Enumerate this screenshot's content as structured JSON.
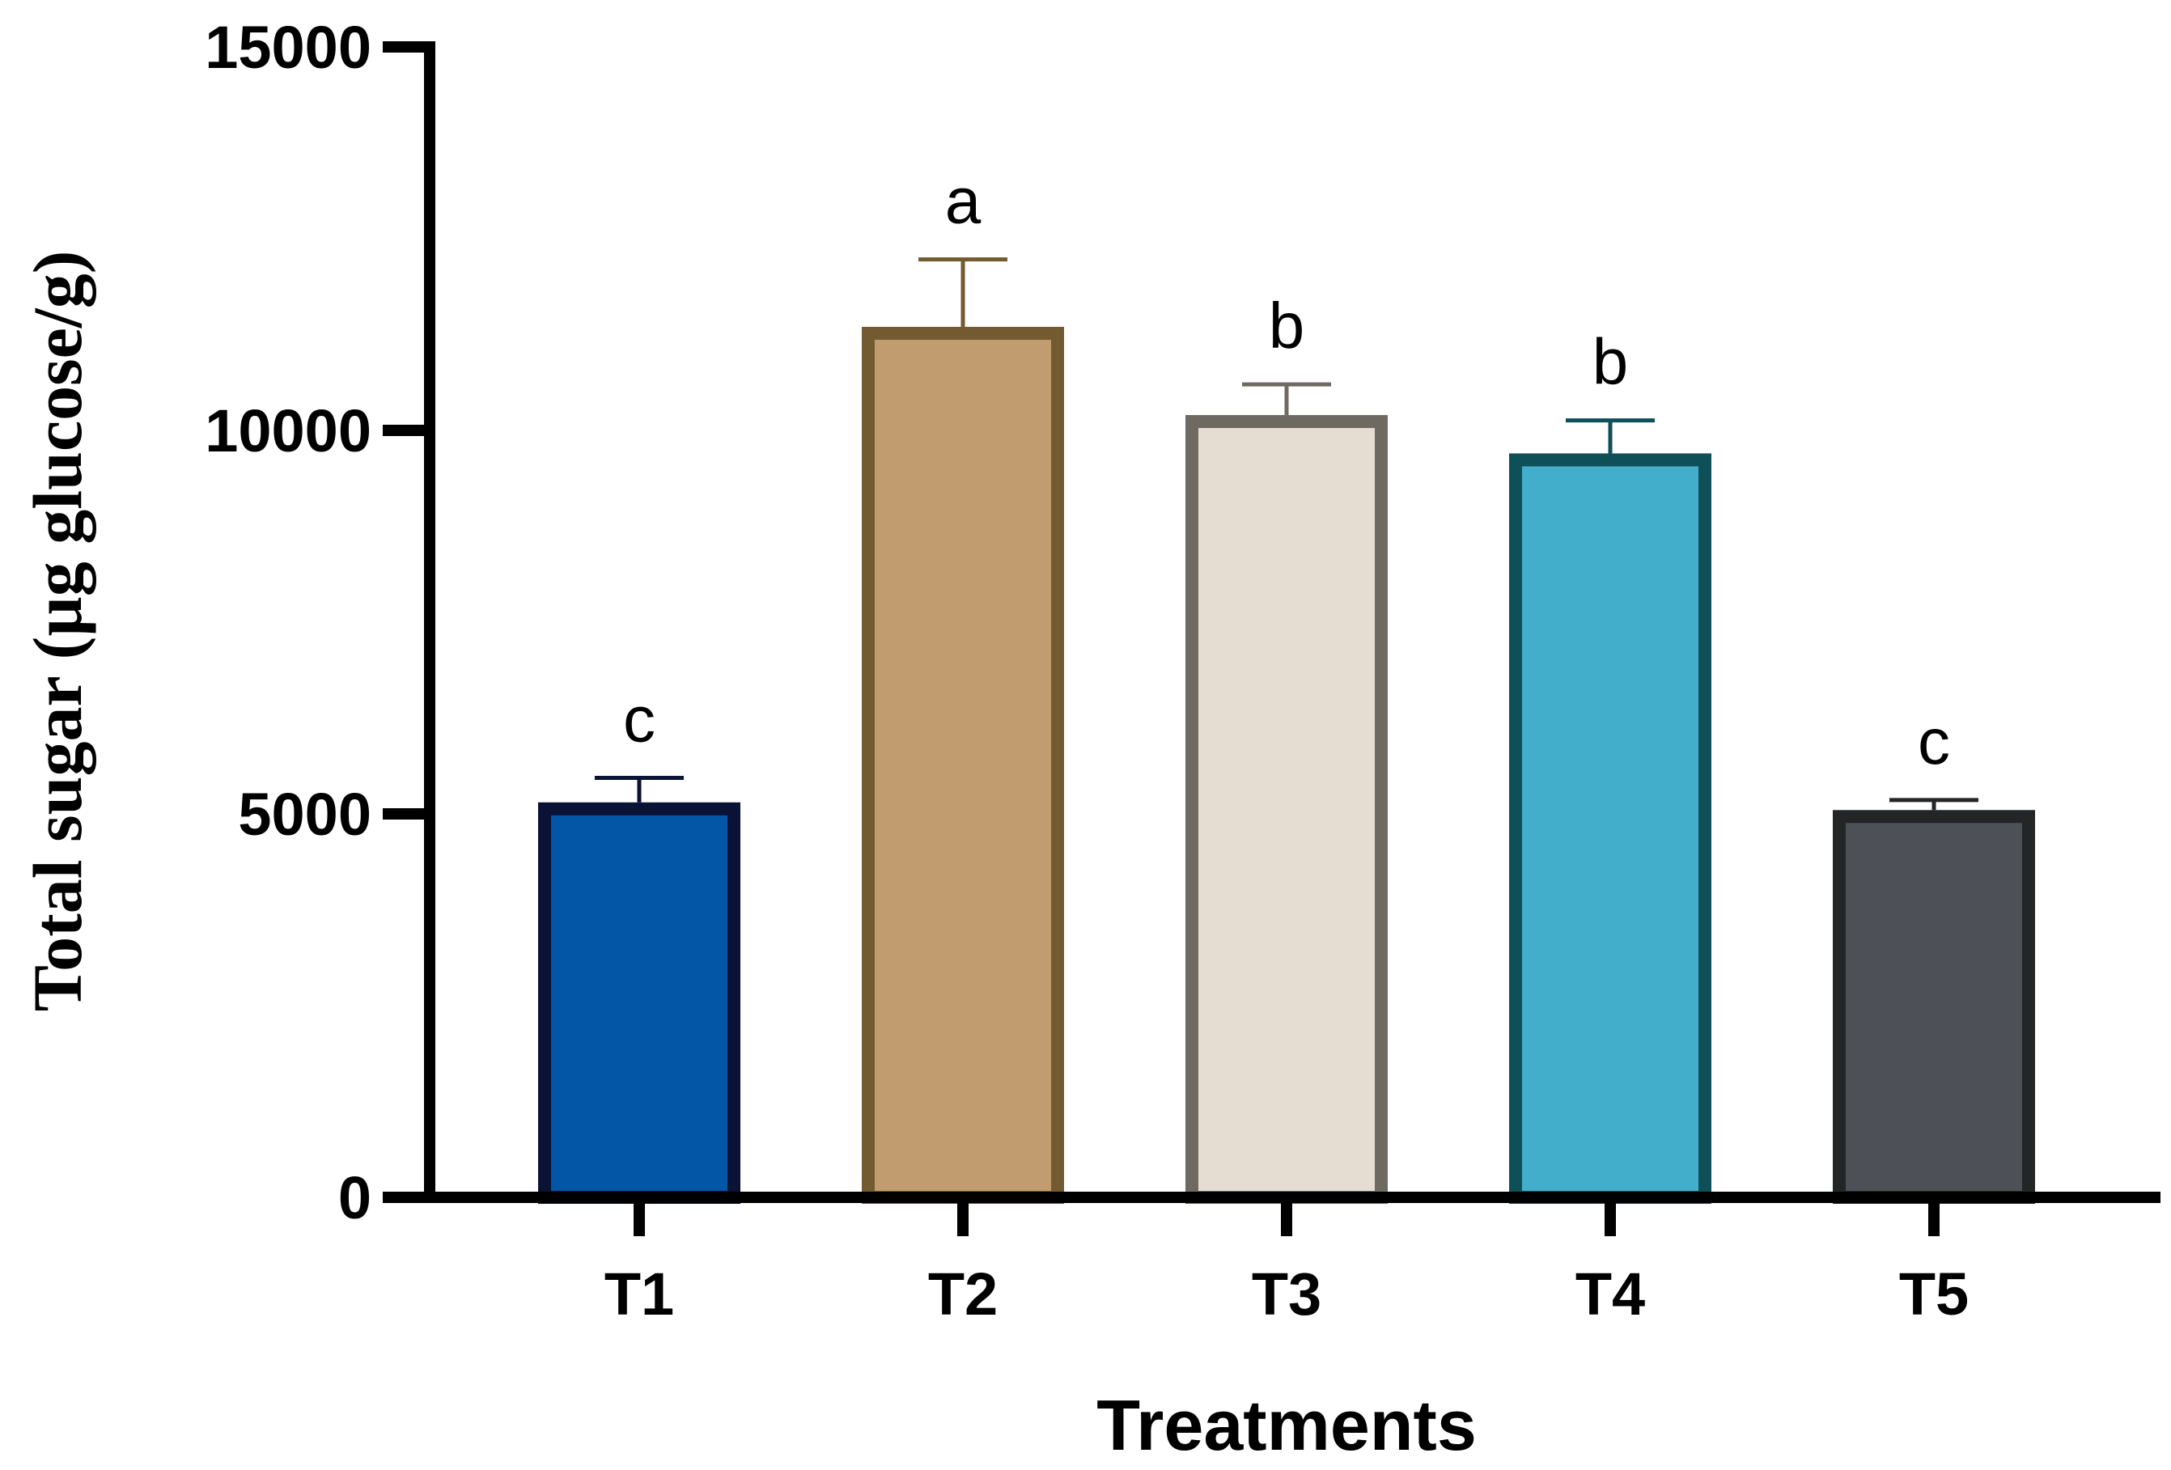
{
  "chart_data": {
    "type": "bar",
    "title": "",
    "xlabel": "Treatments",
    "ylabel": "Total sugar (µg glucose/g)",
    "ylim": [
      0,
      15000
    ],
    "yticks": [
      0,
      5000,
      10000,
      15000
    ],
    "ytick_labels": [
      "0",
      "5000",
      "10000",
      "15000"
    ],
    "categories": [
      "T1",
      "T2",
      "T3",
      "T4",
      "T5"
    ],
    "values": [
      5150,
      11350,
      10200,
      9700,
      5050
    ],
    "errors": [
      320,
      880,
      400,
      430,
      130
    ],
    "significance_labels": [
      "c",
      "a",
      "b",
      "b",
      "c"
    ],
    "fill_colors": [
      "#0355A6",
      "#C19C6E",
      "#E6DDD2",
      "#42AECB",
      "#4D5056"
    ],
    "edge_colors": [
      "#0A1236",
      "#745A31",
      "#6E6A62",
      "#0F4F58",
      "#232527"
    ],
    "grid": false,
    "legend": "none"
  }
}
